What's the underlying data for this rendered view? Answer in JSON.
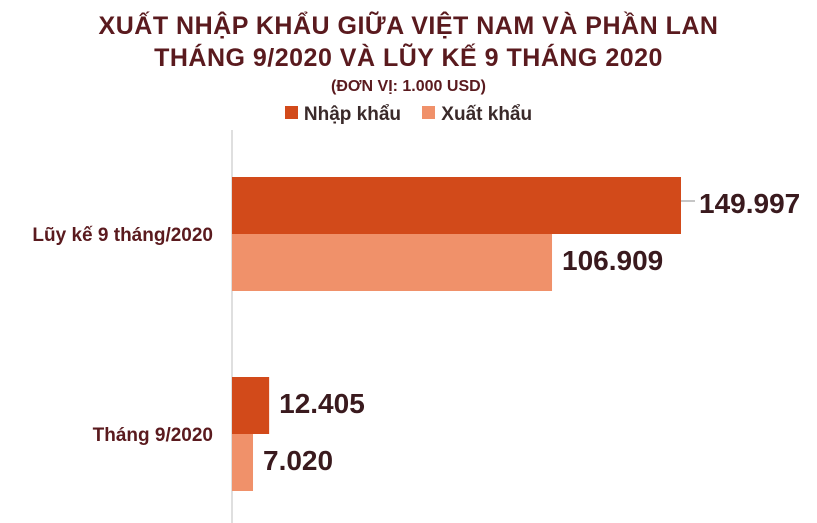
{
  "colors": {
    "title": "#5a1a1e",
    "import": "#d24a1a",
    "export": "#f0916a",
    "axis": "#bfbfbf",
    "category_text": "#5a1a1e",
    "value_text": "#3a1a1e"
  },
  "chart_data": {
    "type": "bar",
    "orientation": "horizontal",
    "title": "XUẤT NHẬP KHẨU GIỮA VIỆT NAM VÀ PHẦN LAN",
    "subtitle": "THÁNG 9/2020 VÀ LŨY KẾ 9 THÁNG 2020",
    "unit": "(ĐƠN VỊ: 1.000 USD)",
    "legend_position": "top",
    "categories": [
      "Lũy kế 9 tháng/2020",
      "Tháng 9/2020"
    ],
    "series": [
      {
        "name": "Nhập khẩu",
        "values": [
          149997,
          12405
        ],
        "labels": [
          "149.997",
          "12.405"
        ]
      },
      {
        "name": "Xuất khẩu",
        "values": [
          106909,
          7020
        ],
        "labels": [
          "106.909",
          "7.020"
        ]
      }
    ],
    "xlim": [
      0,
      160000
    ],
    "grid": false
  }
}
